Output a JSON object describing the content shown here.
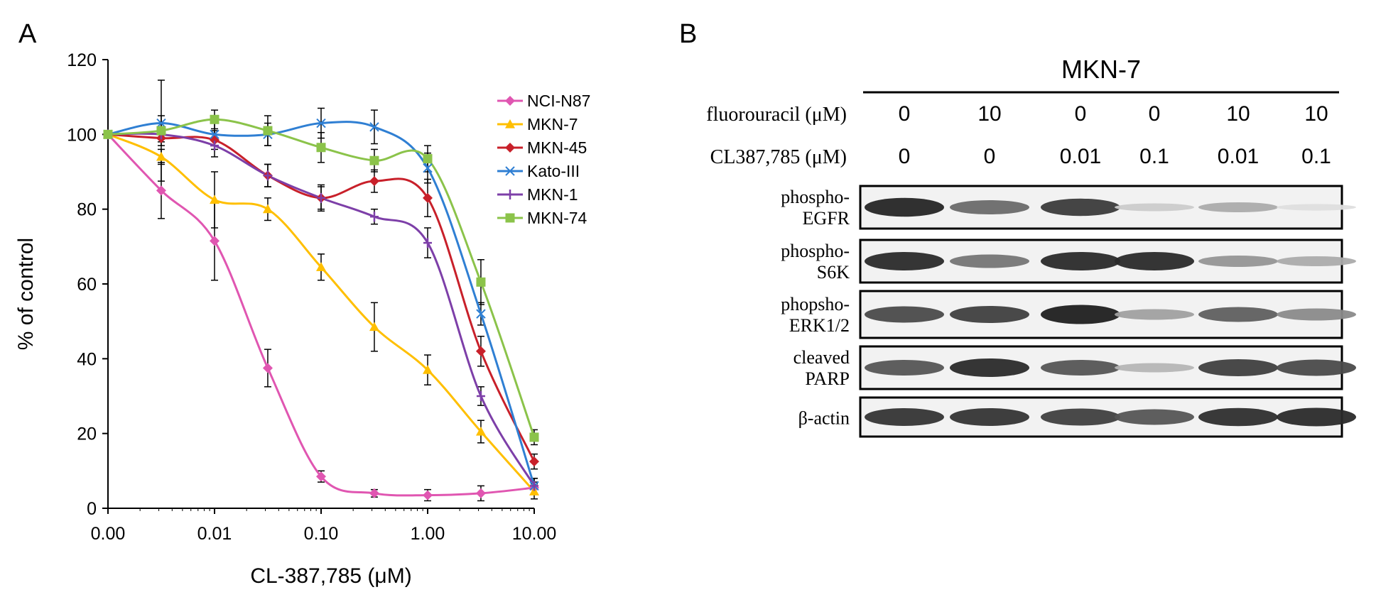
{
  "panel_a": {
    "label": "A",
    "chart_data": {
      "type": "line",
      "title": "",
      "xlabel": "CL-387,785 (μM)",
      "ylabel": "% of control",
      "x_tick_labels": [
        "0.00",
        "0.01",
        "0.10",
        "1.00",
        "10.00"
      ],
      "y_tick_labels": [
        "0",
        "20",
        "40",
        "60",
        "80",
        "100",
        "120"
      ],
      "ylim": [
        0,
        120
      ],
      "x_scale": "log",
      "xlim": [
        0.001,
        10
      ],
      "x": [
        0.001,
        0.00316,
        0.01,
        0.0316,
        0.1,
        0.316,
        1,
        3.16,
        10
      ],
      "legend_position": "top-right",
      "series": [
        {
          "name": "NCI-N87",
          "marker": "diamond",
          "color": "#e056b1",
          "values": [
            100,
            85,
            71.5,
            37.5,
            8.5,
            4,
            3.5,
            4,
            5.5
          ],
          "errors": [
            0,
            7.5,
            10.5,
            5,
            1.5,
            1,
            1.5,
            2,
            1.5
          ]
        },
        {
          "name": "MKN-7",
          "marker": "triangle",
          "color": "#ffbf00",
          "values": [
            100,
            94,
            82.5,
            80,
            64.5,
            48.5,
            37,
            20.5,
            4.5
          ],
          "errors": [
            0,
            2,
            7.5,
            3,
            3.5,
            6.5,
            4,
            3,
            2
          ]
        },
        {
          "name": "MKN-45",
          "marker": "diamond",
          "color": "#c8202a",
          "values": [
            100,
            99,
            98.5,
            89,
            83,
            87.5,
            83,
            42,
            12.5
          ],
          "errors": [
            0,
            2,
            2.5,
            3,
            3,
            3,
            5,
            4,
            2
          ]
        },
        {
          "name": "Kato-III",
          "marker": "x",
          "color": "#2f7fd3",
          "values": [
            100,
            103,
            100,
            100,
            103,
            102,
            91,
            52,
            6
          ],
          "errors": [
            0,
            2,
            3,
            3,
            4,
            4.5,
            4,
            3,
            2
          ]
        },
        {
          "name": "MKN-1",
          "marker": "plus",
          "color": "#7d3fa8",
          "values": [
            100,
            100,
            97,
            89,
            83,
            78,
            71,
            30,
            6
          ],
          "errors": [
            0,
            2,
            3,
            3,
            3.5,
            2,
            4,
            2.5,
            2
          ]
        },
        {
          "name": "MKN-74",
          "marker": "square",
          "color": "#8bc34a",
          "values": [
            100,
            101,
            104,
            101,
            96.5,
            93,
            93.5,
            60.5,
            19
          ],
          "errors": [
            0,
            13.5,
            2.5,
            4,
            4,
            3,
            3.5,
            6,
            2
          ]
        }
      ]
    }
  },
  "panel_b": {
    "label": "B",
    "cell_line": "MKN-7",
    "row_labels": [
      {
        "name": "fluorouracil",
        "text": "fluorouracil (μM)",
        "values": [
          "0",
          "10",
          "0",
          "0",
          "10",
          "10"
        ]
      },
      {
        "name": "cl387785",
        "text": "CL387,785 (μM)",
        "values": [
          "0",
          "0",
          "0.01",
          "0.1",
          "0.01",
          "0.1"
        ]
      }
    ],
    "blots": [
      {
        "label_lines": [
          "phospho-",
          "EGFR"
        ],
        "intensity": [
          0.92,
          0.6,
          0.82,
          0.15,
          0.3,
          0.06
        ]
      },
      {
        "label_lines": [
          "phospho-",
          "S6K"
        ],
        "intensity": [
          0.9,
          0.55,
          0.9,
          0.9,
          0.4,
          0.3
        ]
      },
      {
        "label_lines": [
          "phopsho-",
          "ERK1/2"
        ],
        "intensity": [
          0.75,
          0.8,
          0.95,
          0.35,
          0.65,
          0.45
        ]
      },
      {
        "label_lines": [
          "cleaved",
          "PARP"
        ],
        "intensity": [
          0.7,
          0.9,
          0.7,
          0.25,
          0.8,
          0.75
        ]
      },
      {
        "label_lines": [
          "β-actin"
        ],
        "intensity": [
          0.85,
          0.85,
          0.8,
          0.7,
          0.88,
          0.9
        ]
      }
    ]
  }
}
